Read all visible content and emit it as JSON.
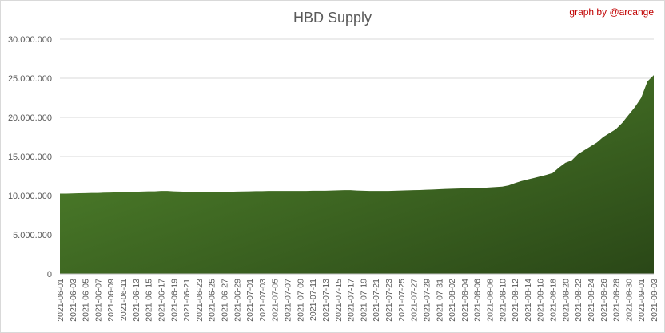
{
  "chart_data": {
    "type": "area",
    "title": "HBD Supply",
    "annotation": "graph by @arcange",
    "categories": [
      "2021-06-01",
      null,
      "2021-06-03",
      null,
      "2021-06-05",
      null,
      "2021-06-07",
      null,
      "2021-06-09",
      null,
      "2021-06-11",
      null,
      "2021-06-13",
      null,
      "2021-06-15",
      null,
      "2021-06-17",
      null,
      "2021-06-19",
      null,
      "2021-06-21",
      null,
      "2021-06-23",
      null,
      "2021-06-25",
      null,
      "2021-06-27",
      null,
      "2021-06-29",
      null,
      "2021-07-01",
      null,
      "2021-07-03",
      null,
      "2021-07-05",
      null,
      "2021-07-07",
      null,
      "2021-07-09",
      null,
      "2021-07-11",
      null,
      "2021-07-13",
      null,
      "2021-07-15",
      null,
      "2021-07-17",
      null,
      "2021-07-19",
      null,
      "2021-07-21",
      null,
      "2021-07-23",
      null,
      "2021-07-25",
      null,
      "2021-07-27",
      null,
      "2021-07-29",
      null,
      "2021-07-31",
      null,
      "2021-08-02",
      null,
      "2021-08-04",
      null,
      "2021-08-06",
      null,
      "2021-08-08",
      null,
      "2021-08-10",
      null,
      "2021-08-12",
      null,
      "2021-08-14",
      null,
      "2021-08-16",
      null,
      "2021-08-18",
      null,
      "2021-08-20",
      null,
      "2021-08-22",
      null,
      "2021-08-24",
      null,
      "2021-08-26",
      null,
      "2021-08-28",
      null,
      "2021-08-30",
      null,
      "2021-09-01",
      null,
      "2021-09-03"
    ],
    "values": [
      10250000,
      10250000,
      10280000,
      10300000,
      10320000,
      10350000,
      10350000,
      10380000,
      10400000,
      10420000,
      10450000,
      10480000,
      10500000,
      10520000,
      10550000,
      10550000,
      10600000,
      10600000,
      10550000,
      10520000,
      10500000,
      10480000,
      10450000,
      10450000,
      10450000,
      10450000,
      10470000,
      10500000,
      10520000,
      10530000,
      10550000,
      10570000,
      10580000,
      10600000,
      10600000,
      10600000,
      10600000,
      10600000,
      10600000,
      10600000,
      10620000,
      10620000,
      10630000,
      10650000,
      10680000,
      10700000,
      10700000,
      10650000,
      10620000,
      10600000,
      10600000,
      10600000,
      10600000,
      10620000,
      10650000,
      10680000,
      10700000,
      10720000,
      10750000,
      10780000,
      10820000,
      10850000,
      10880000,
      10900000,
      10930000,
      10950000,
      10980000,
      11000000,
      11050000,
      11100000,
      11150000,
      11300000,
      11600000,
      11850000,
      12050000,
      12250000,
      12450000,
      12650000,
      12900000,
      13600000,
      14200000,
      14500000,
      15300000,
      15800000,
      16300000,
      16800000,
      17500000,
      18000000,
      18500000,
      19300000,
      20300000,
      21300000,
      22500000,
      24600000,
      25400000
    ],
    "color_start": "#548a2e",
    "color_end": "#2a4717",
    "ylim": [
      0,
      30000000
    ],
    "yticks": [
      0,
      {
        "value": 5000000,
        "label": "5.000.000"
      },
      {
        "value": 10000000,
        "label": "10.000.000"
      },
      {
        "value": 15000000,
        "label": "15.000.000"
      },
      {
        "value": 20000000,
        "label": "20.000.000"
      },
      {
        "value": 25000000,
        "label": "25.000.000"
      },
      {
        "value": 30000000,
        "label": "30.000.000"
      }
    ],
    "grid": true
  }
}
